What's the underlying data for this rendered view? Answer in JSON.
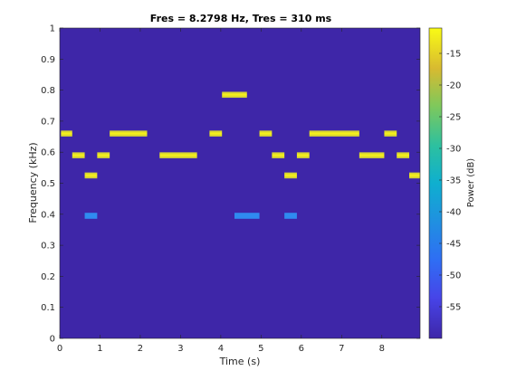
{
  "chart_data": {
    "type": "heatmap",
    "title": "Fres = 8.2798 Hz, Tres = 310 ms",
    "xlabel": "Time (s)",
    "ylabel": "Frequency (kHz)",
    "colorbar_label": "Power (dB)",
    "xlim": [
      0,
      8.95
    ],
    "ylim": [
      0,
      1
    ],
    "clim": [
      -60,
      -11
    ],
    "x_ticks": [
      "0",
      "1",
      "2",
      "3",
      "4",
      "5",
      "6",
      "7",
      "8"
    ],
    "y_ticks": [
      "0",
      "0.1",
      "0.2",
      "0.3",
      "0.4",
      "0.5",
      "0.6",
      "0.7",
      "0.8",
      "0.9",
      "1"
    ],
    "colorbar_ticks": [
      "-15",
      "-20",
      "-25",
      "-30",
      "-35",
      "-40",
      "-45",
      "-50",
      "-55"
    ],
    "background_power_db": -57,
    "colors": {
      "background": "#3e26a8",
      "strong": "#f5e61e",
      "weak": "#2f8bf0"
    },
    "segments": [
      {
        "t0": 0.03,
        "t1": 0.31,
        "f": 0.66,
        "power_db": -11
      },
      {
        "t0": 0.31,
        "t1": 0.62,
        "f": 0.59,
        "power_db": -11
      },
      {
        "t0": 0.62,
        "t1": 0.93,
        "f": 0.525,
        "power_db": -11
      },
      {
        "t0": 0.62,
        "t1": 0.93,
        "f": 0.395,
        "power_db": -45
      },
      {
        "t0": 0.93,
        "t1": 1.24,
        "f": 0.59,
        "power_db": -11
      },
      {
        "t0": 1.24,
        "t1": 2.17,
        "f": 0.66,
        "power_db": -11
      },
      {
        "t0": 2.48,
        "t1": 3.41,
        "f": 0.59,
        "power_db": -11
      },
      {
        "t0": 3.72,
        "t1": 4.03,
        "f": 0.66,
        "power_db": -11
      },
      {
        "t0": 4.03,
        "t1": 4.65,
        "f": 0.785,
        "power_db": -11
      },
      {
        "t0": 4.34,
        "t1": 4.96,
        "f": 0.395,
        "power_db": -45
      },
      {
        "t0": 4.96,
        "t1": 5.27,
        "f": 0.66,
        "power_db": -11
      },
      {
        "t0": 5.27,
        "t1": 5.58,
        "f": 0.59,
        "power_db": -11
      },
      {
        "t0": 5.58,
        "t1": 5.89,
        "f": 0.525,
        "power_db": -11
      },
      {
        "t0": 5.58,
        "t1": 5.89,
        "f": 0.395,
        "power_db": -45
      },
      {
        "t0": 5.89,
        "t1": 6.2,
        "f": 0.59,
        "power_db": -11
      },
      {
        "t0": 6.2,
        "t1": 7.44,
        "f": 0.66,
        "power_db": -11
      },
      {
        "t0": 7.44,
        "t1": 8.06,
        "f": 0.59,
        "power_db": -11
      },
      {
        "t0": 8.06,
        "t1": 8.37,
        "f": 0.66,
        "power_db": -11
      },
      {
        "t0": 8.37,
        "t1": 8.68,
        "f": 0.59,
        "power_db": -11
      },
      {
        "t0": 8.68,
        "t1": 8.95,
        "f": 0.525,
        "power_db": -11
      }
    ]
  }
}
